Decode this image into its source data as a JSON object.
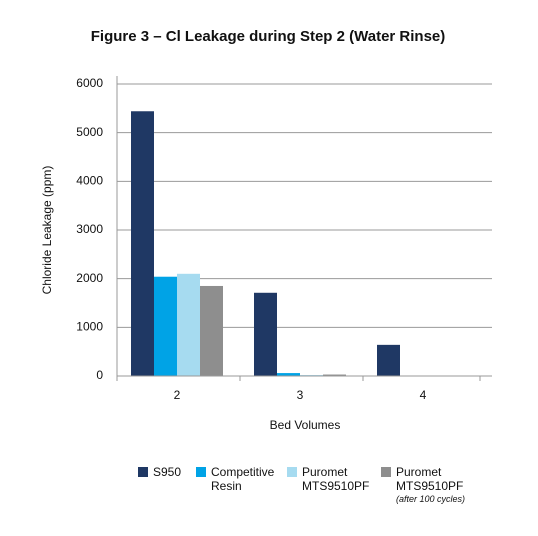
{
  "chart_data": {
    "type": "bar",
    "title": "Figure 3 – Cl Leakage during Step 2 (Water Rinse)",
    "x_label": "Bed Volumes",
    "y_label": "Chloride Leakage (ppm)",
    "categories": [
      "2",
      "3",
      "4"
    ],
    "series": [
      {
        "name": "S950",
        "color": "#1f3864",
        "values": [
          5440,
          1710,
          640
        ]
      },
      {
        "name": "Competitive Resin",
        "color": "#00a3e6",
        "values": [
          2040,
          60,
          0
        ]
      },
      {
        "name": "Puromet MTS9510PF",
        "color": "#a6dbf0",
        "values": [
          2100,
          20,
          0
        ]
      },
      {
        "name": "Puromet MTS9510PF",
        "note": "(after 100 cycles)",
        "color": "#8e8e8e",
        "values": [
          1850,
          30,
          0
        ]
      }
    ],
    "ylim": [
      0,
      6000
    ],
    "yticks": [
      0,
      1000,
      2000,
      3000,
      4000,
      5000,
      6000
    ],
    "grid": true
  }
}
